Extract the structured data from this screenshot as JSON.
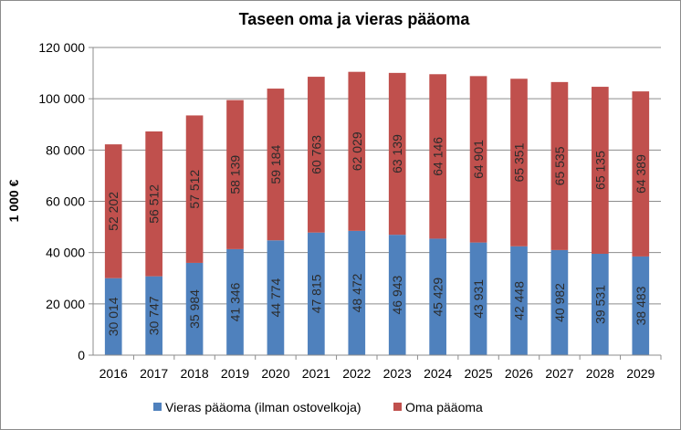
{
  "chart_data": {
    "type": "bar",
    "stacked": true,
    "title": "Taseen oma ja vieras pääoma",
    "xlabel": "",
    "ylabel": "1 000 €",
    "ylim": [
      0,
      120000
    ],
    "yticks": [
      "0",
      "20 000",
      "40 000",
      "60 000",
      "80 000",
      "100 000",
      "120 000"
    ],
    "grid": true,
    "legend_position": "bottom",
    "categories": [
      "2016",
      "2017",
      "2018",
      "2019",
      "2020",
      "2021",
      "2022",
      "2023",
      "2024",
      "2025",
      "2026",
      "2027",
      "2028",
      "2029"
    ],
    "series": [
      {
        "name": "Vieras pääoma (ilman ostovelkoja)",
        "color": "#4f81bd",
        "values": [
          30014,
          30747,
          35984,
          41346,
          44774,
          47815,
          48472,
          46943,
          45429,
          43931,
          42448,
          40982,
          39531,
          38483
        ],
        "labels": [
          "30 014",
          "30 747",
          "35 984",
          "41 346",
          "44 774",
          "47 815",
          "48 472",
          "46 943",
          "45 429",
          "43 931",
          "42 448",
          "40 982",
          "39 531",
          "38 483"
        ]
      },
      {
        "name": "Oma pääoma",
        "color": "#c0504d",
        "values": [
          52202,
          56512,
          57512,
          58139,
          59184,
          60763,
          62029,
          63139,
          64146,
          64901,
          65351,
          65535,
          65135,
          64389
        ],
        "labels": [
          "52 202",
          "56 512",
          "57 512",
          "58 139",
          "59 184",
          "60 763",
          "62 029",
          "63 139",
          "64 146",
          "64 901",
          "65 351",
          "65 535",
          "65 135",
          "64 389"
        ]
      }
    ]
  }
}
